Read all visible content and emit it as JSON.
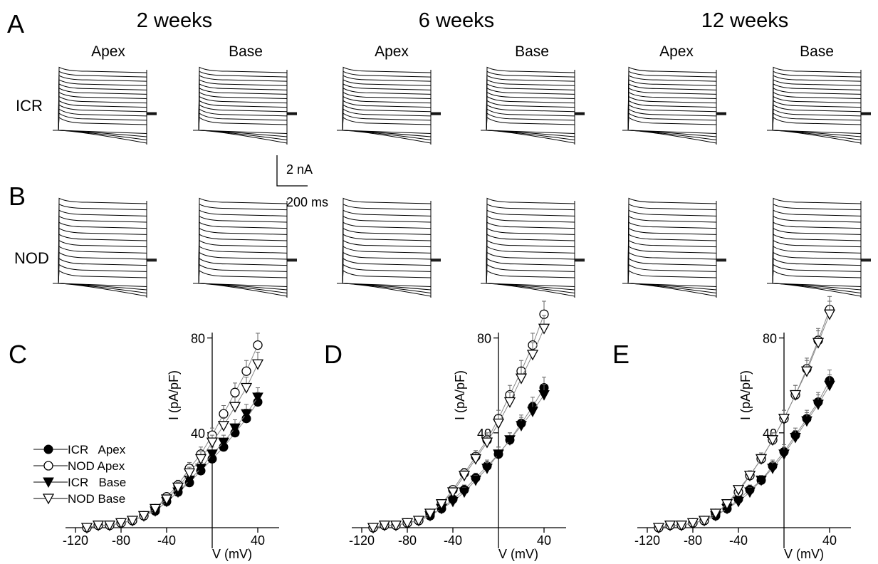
{
  "panel_letters": {
    "A": "A",
    "B": "B",
    "C": "C",
    "D": "D",
    "E": "E"
  },
  "ages": [
    "2 weeks",
    "6 weeks",
    "12 weeks"
  ],
  "regions": [
    "Apex",
    "Base"
  ],
  "strains": [
    "ICR",
    "NOD"
  ],
  "scale_bar": {
    "current": "2 nA",
    "time": "200 ms"
  },
  "chart_data": [
    {
      "type": "scatter",
      "panel": "C",
      "xlabel": "V (mV)",
      "ylabel": "I (pA/pF)",
      "xlim": [
        -130,
        60
      ],
      "ylim": [
        0,
        100
      ],
      "x_ticks": [
        -120,
        -80,
        -40,
        40
      ],
      "y_ticks": [
        40,
        80
      ],
      "legend_position": "left",
      "x": [
        -110,
        -100,
        -90,
        -80,
        -70,
        -60,
        -50,
        -40,
        -30,
        -20,
        -10,
        0,
        10,
        20,
        30,
        40
      ],
      "series": [
        {
          "name": "ICR   Apex",
          "marker": "filled-circle",
          "values": [
            0,
            1,
            1,
            2,
            3,
            5,
            7,
            11,
            15,
            19,
            24,
            29,
            34,
            40,
            46,
            53
          ],
          "errors": [
            0.5,
            0.5,
            0.5,
            0.5,
            0.5,
            1,
            1,
            1.5,
            2,
            2,
            2.5,
            3,
            3,
            3.5,
            4,
            4
          ]
        },
        {
          "name": "NOD Apex",
          "marker": "open-circle",
          "values": [
            0,
            1,
            1,
            2,
            3,
            5,
            8,
            13,
            18,
            25,
            31,
            39,
            48,
            57,
            66,
            77
          ],
          "errors": [
            0.5,
            0.5,
            0.5,
            0.5,
            0.5,
            1,
            1,
            1.5,
            2,
            2.5,
            3,
            3,
            3.5,
            4,
            4.5,
            5
          ]
        },
        {
          "name": "ICR   Base",
          "marker": "filled-triangle",
          "values": [
            0,
            1,
            1,
            2,
            3,
            5,
            7,
            11,
            15,
            20,
            25,
            31,
            36,
            42,
            48,
            55
          ],
          "errors": [
            0.5,
            0.5,
            0.5,
            0.5,
            0.5,
            1,
            1,
            1.5,
            2,
            2,
            2.5,
            3,
            3,
            3.5,
            4,
            4
          ]
        },
        {
          "name": "NOD Base",
          "marker": "open-triangle",
          "values": [
            0,
            1,
            1,
            2,
            3,
            5,
            8,
            12,
            17,
            23,
            29,
            36,
            43,
            51,
            59,
            69
          ],
          "errors": [
            0.5,
            0.5,
            0.5,
            0.5,
            0.5,
            1,
            1,
            1.5,
            2,
            2.5,
            3,
            3,
            3.5,
            4,
            4.5,
            5
          ]
        }
      ]
    },
    {
      "type": "scatter",
      "panel": "D",
      "xlabel": "V (mV)",
      "ylabel": "I (pA/pF)",
      "xlim": [
        -130,
        60
      ],
      "ylim": [
        0,
        100
      ],
      "x_ticks": [
        -120,
        -80,
        -40,
        40
      ],
      "y_ticks": [
        40,
        80
      ],
      "x": [
        -110,
        -100,
        -90,
        -80,
        -70,
        -60,
        -50,
        -40,
        -30,
        -20,
        -10,
        0,
        10,
        20,
        30,
        40
      ],
      "series": [
        {
          "name": "ICR   Apex",
          "marker": "filled-circle",
          "values": [
            0,
            1,
            1,
            2,
            3,
            5,
            8,
            12,
            16,
            21,
            26,
            31,
            37,
            44,
            51,
            59
          ],
          "errors": [
            0.5,
            0.5,
            0.5,
            0.5,
            0.5,
            1,
            1,
            1.5,
            2,
            2,
            2.5,
            3,
            3,
            3.5,
            4,
            4.5
          ]
        },
        {
          "name": "NOD Apex",
          "marker": "open-circle",
          "values": [
            0,
            1,
            1,
            2,
            3,
            6,
            10,
            16,
            23,
            30,
            37,
            46,
            56,
            66,
            77,
            90
          ],
          "errors": [
            0.5,
            0.5,
            0.5,
            0.5,
            0.5,
            1,
            1,
            1.5,
            2,
            2.5,
            3,
            3.5,
            4,
            4.5,
            5,
            5.5
          ]
        },
        {
          "name": "ICR   Base",
          "marker": "filled-triangle",
          "values": [
            0,
            1,
            1,
            2,
            3,
            5,
            8,
            11,
            15,
            20,
            25,
            31,
            37,
            43,
            49,
            56
          ],
          "errors": [
            0.5,
            0.5,
            0.5,
            0.5,
            0.5,
            1,
            1,
            1.5,
            2,
            2,
            2.5,
            3,
            3,
            3.5,
            4,
            4.5
          ]
        },
        {
          "name": "NOD Base",
          "marker": "open-triangle",
          "values": [
            0,
            1,
            1,
            2,
            3,
            6,
            10,
            15,
            22,
            29,
            36,
            44,
            53,
            63,
            73,
            84
          ],
          "errors": [
            0.5,
            0.5,
            0.5,
            0.5,
            0.5,
            1,
            1,
            1.5,
            2,
            2.5,
            3,
            3.5,
            4,
            4.5,
            5,
            5.5
          ]
        }
      ]
    },
    {
      "type": "scatter",
      "panel": "E",
      "xlabel": "V (mV)",
      "ylabel": "I (pA/pF)",
      "xlim": [
        -130,
        60
      ],
      "ylim": [
        0,
        100
      ],
      "x_ticks": [
        -120,
        -80,
        -40,
        40
      ],
      "y_ticks": [
        40,
        80
      ],
      "x": [
        -110,
        -100,
        -90,
        -80,
        -70,
        -60,
        -50,
        -40,
        -30,
        -20,
        -10,
        0,
        10,
        20,
        30,
        40
      ],
      "series": [
        {
          "name": "ICR   Apex",
          "marker": "filled-circle",
          "values": [
            0,
            1,
            1,
            2,
            3,
            5,
            8,
            12,
            16,
            20,
            26,
            32,
            39,
            46,
            53,
            62
          ],
          "errors": [
            0.5,
            0.5,
            0.5,
            0.5,
            0.5,
            1,
            1,
            1.5,
            2,
            2,
            2.5,
            3,
            3,
            3.5,
            4,
            4.5
          ]
        },
        {
          "name": "NOD Apex",
          "marker": "open-circle",
          "values": [
            0,
            1,
            1,
            2,
            3,
            6,
            10,
            15,
            22,
            29,
            37,
            46,
            56,
            67,
            79,
            92
          ],
          "errors": [
            0.5,
            0.5,
            0.5,
            0.5,
            0.5,
            1,
            1,
            1.5,
            2,
            2.5,
            3,
            3.5,
            4,
            4.5,
            5,
            5.5
          ]
        },
        {
          "name": "ICR   Base",
          "marker": "filled-triangle",
          "values": [
            0,
            1,
            1,
            2,
            3,
            5,
            8,
            11,
            15,
            20,
            25,
            31,
            38,
            45,
            52,
            60
          ],
          "errors": [
            0.5,
            0.5,
            0.5,
            0.5,
            0.5,
            1,
            1,
            1.5,
            2,
            2,
            2.5,
            3,
            3,
            3.5,
            4,
            4.5
          ]
        },
        {
          "name": "NOD Base",
          "marker": "open-triangle",
          "values": [
            0,
            1,
            1,
            2,
            3,
            6,
            10,
            16,
            22,
            29,
            37,
            46,
            56,
            66,
            78,
            90
          ],
          "errors": [
            0.5,
            0.5,
            0.5,
            0.5,
            0.5,
            1,
            1,
            1.5,
            2,
            2.5,
            3,
            3.5,
            4,
            4.5,
            5,
            5.5
          ]
        }
      ]
    }
  ]
}
